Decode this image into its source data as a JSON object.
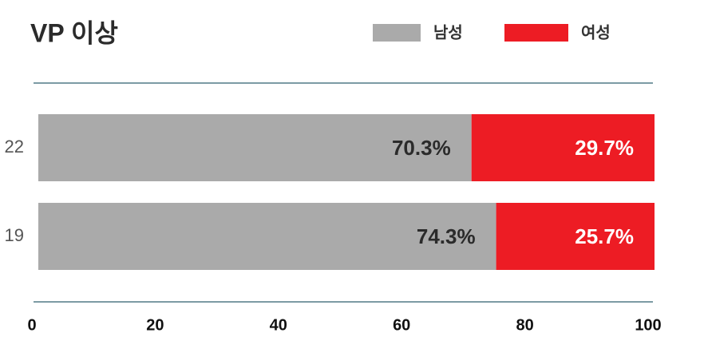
{
  "chart_data": {
    "type": "stacked-barh",
    "title": "VP 이상",
    "categories": [
      "22",
      "19"
    ],
    "series": [
      {
        "name": "남성",
        "color": "#aaaaaa",
        "values": [
          70.3,
          74.3
        ],
        "value_labels": [
          "70.3%",
          "74.3%"
        ]
      },
      {
        "name": "여성",
        "color": "#ed1c24",
        "values": [
          29.7,
          25.7
        ],
        "value_labels": [
          "29.7%",
          "25.7%"
        ]
      }
    ],
    "xlim": [
      0,
      100
    ],
    "xticks": [
      0,
      20,
      40,
      60,
      80,
      100
    ]
  }
}
